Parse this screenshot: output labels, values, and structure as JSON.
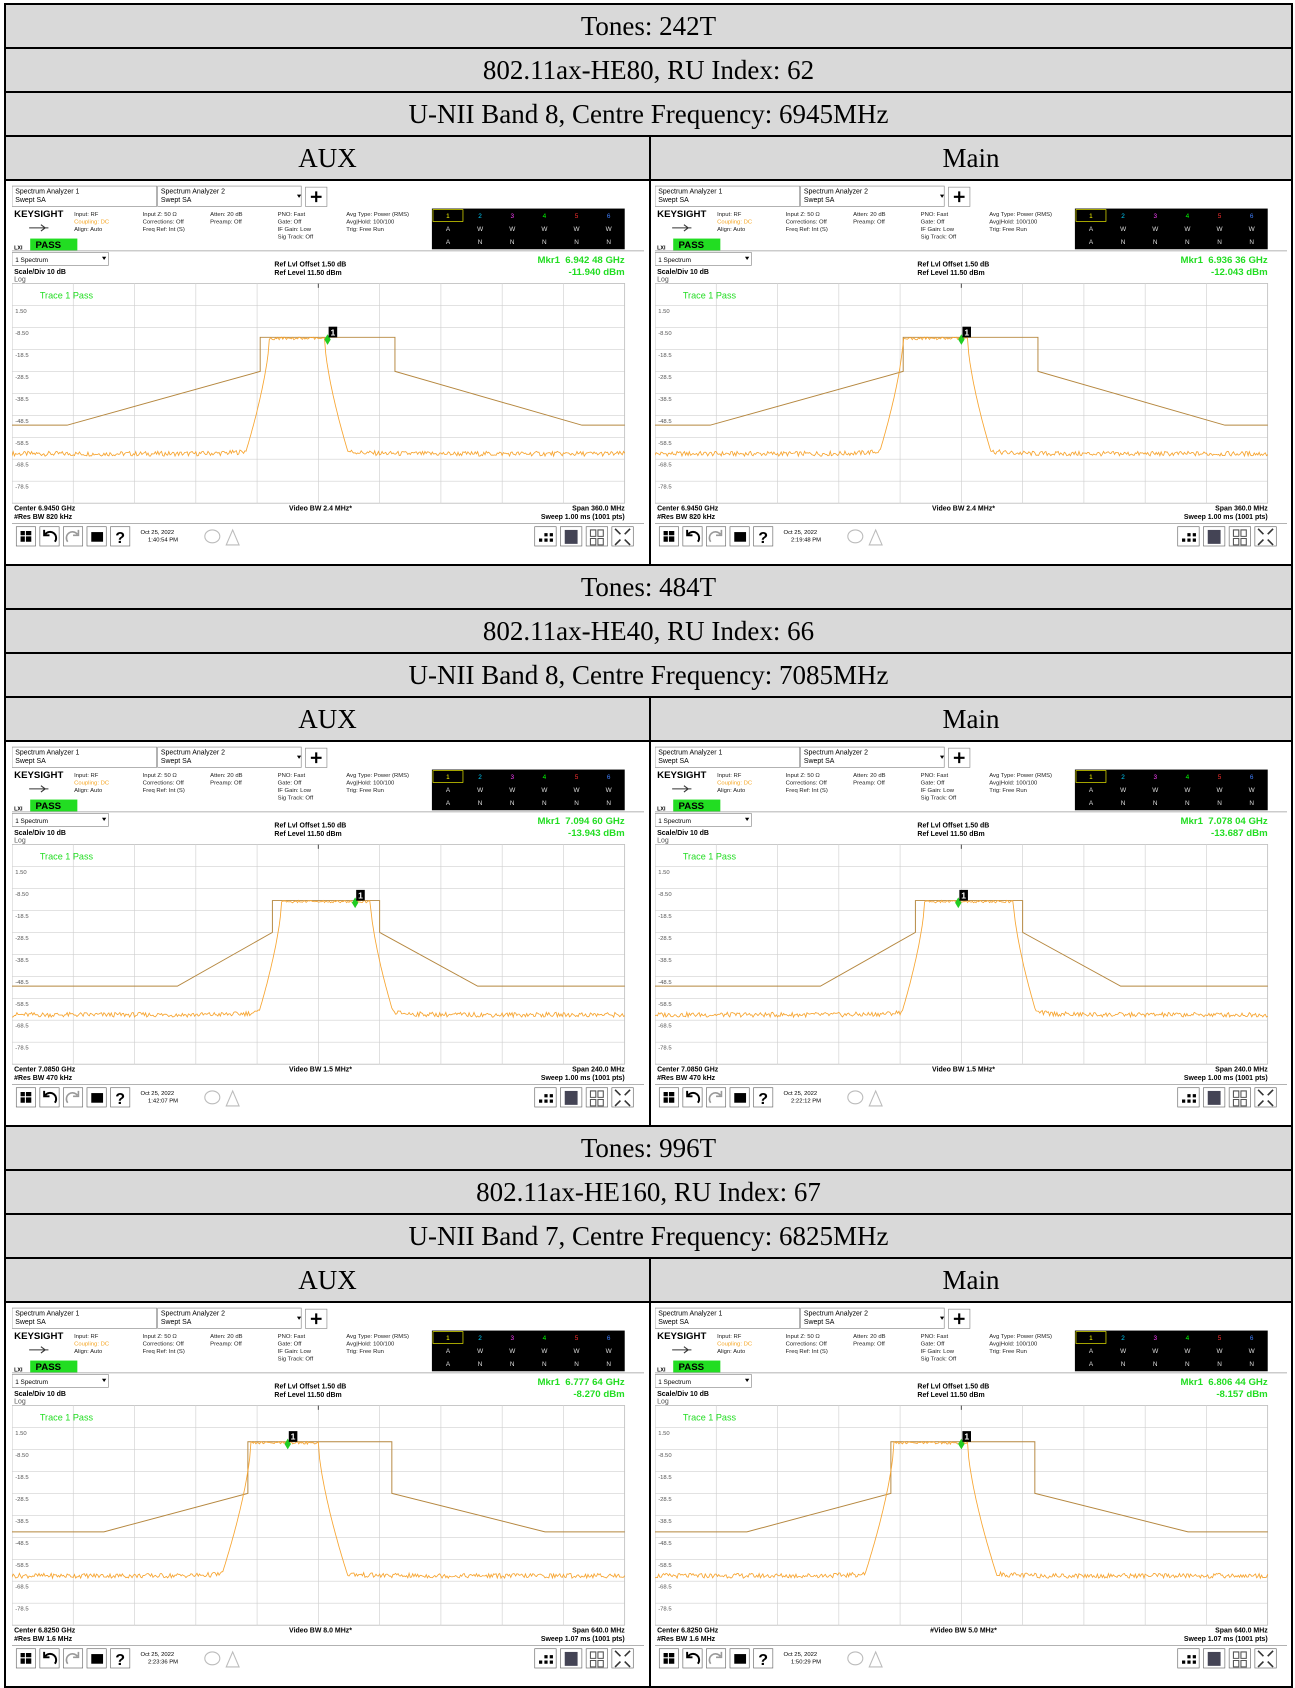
{
  "common": {
    "tab1": "Spectrum Analyzer 1",
    "tab2": "Spectrum Analyzer 2",
    "swept_sa": "Swept SA",
    "keysight": "KEYSIGHT",
    "lxi": "LXI",
    "pass": "PASS",
    "settings": [
      [
        "Input: RF",
        "Coupling: DC",
        "Align: Auto"
      ],
      [
        "Input Z: 50 Ω",
        "Corrections: Off",
        "Freq Ref: Int (S)"
      ],
      [
        "Atten: 20 dB",
        "Preamp: Off"
      ],
      [
        "PNO: Fast",
        "Gate: Off",
        "IF Gain: Low",
        "Sig Track: Off"
      ],
      [
        "Avg Type: Power (RMS)",
        "Avg|Hold: 100/100",
        "Trig: Free Run"
      ]
    ],
    "trace_table": [
      [
        "1",
        "2",
        "3",
        "4",
        "5",
        "6"
      ],
      [
        "A",
        "W",
        "W",
        "W",
        "W",
        "W"
      ],
      [
        "A",
        "N",
        "N",
        "N",
        "N",
        "N"
      ]
    ],
    "spectrum": "1 Spectrum",
    "scale_div": "Scale/Div 10 dB",
    "log": "Log",
    "ref_offset": "Ref Lvl Offset 1.50 dB",
    "ref_level": "Ref Level 11.50 dBm",
    "trace_pass": "Trace 1 Pass",
    "marker_id": "1",
    "help": "?",
    "yticks": [
      "1.50",
      "-8.50",
      "-18.5",
      "-28.5",
      "-38.5",
      "-48.5",
      "-58.5",
      "-68.5",
      "-78.5"
    ]
  },
  "sections": [
    {
      "tones": "Tones: 242T",
      "mode": "802.11ax-HE80, RU Index: 62",
      "band": "U-NII Band 8, Centre Frequency: 6945MHz",
      "panels": [
        {
          "label": "AUX",
          "marker_freq": "Mkr1  6.942 48 GHz",
          "marker_level": "-11.940 dBm",
          "center": "Center 6.9450 GHz",
          "res_bw": "#Res BW 820 kHz",
          "video_bw": "Video BW 2.4 MHz*",
          "span": "Span 360.0 MHz",
          "sweep": "Sweep 1.00 ms (1001 pts)",
          "date": "Oct 25, 2022",
          "time": "1:40:54 PM"
        },
        {
          "label": "Main",
          "marker_freq": "Mkr1  6.936 36 GHz",
          "marker_level": "-12.043 dBm",
          "center": "Center 6.9450 GHz",
          "res_bw": "#Res BW 820 kHz",
          "video_bw": "Video BW 2.4 MHz*",
          "span": "Span 360.0 MHz",
          "sweep": "Sweep 1.00 ms (1001 pts)",
          "date": "Oct 25, 2022",
          "time": "2:19:48 PM"
        }
      ]
    },
    {
      "tones": "Tones: 484T",
      "mode": "802.11ax-HE40, RU Index: 66",
      "band": "U-NII Band 8, Centre Frequency: 7085MHz",
      "panels": [
        {
          "label": "AUX",
          "marker_freq": "Mkr1  7.094 60 GHz",
          "marker_level": "-13.943 dBm",
          "center": "Center 7.0850 GHz",
          "res_bw": "#Res BW 470 kHz",
          "video_bw": "Video BW 1.5 MHz*",
          "span": "Span 240.0 MHz",
          "sweep": "Sweep 1.00 ms (1001 pts)",
          "date": "Oct 25, 2022",
          "time": "1:42:07 PM"
        },
        {
          "label": "Main",
          "marker_freq": "Mkr1  7.078 04 GHz",
          "marker_level": "-13.687 dBm",
          "center": "Center 7.0850 GHz",
          "res_bw": "#Res BW 470 kHz",
          "video_bw": "Video BW 1.5 MHz*",
          "span": "Span 240.0 MHz",
          "sweep": "Sweep 1.00 ms (1001 pts)",
          "date": "Oct 25, 2022",
          "time": "2:22:12 PM"
        }
      ]
    },
    {
      "tones": "Tones: 996T",
      "mode": "802.11ax-HE160, RU Index: 67",
      "band": "U-NII Band 7, Centre Frequency: 6825MHz",
      "panels": [
        {
          "label": "AUX",
          "marker_freq": "Mkr1  6.777 64 GHz",
          "marker_level": "-8.270 dBm",
          "center": "Center 6.8250 GHz",
          "res_bw": "#Res BW 1.6 MHz",
          "video_bw": "Video BW 8.0 MHz*",
          "span": "Span 640.0 MHz",
          "sweep": "Sweep 1.07 ms (1001 pts)",
          "date": "Oct 25, 2022",
          "time": "2:23:36 PM"
        },
        {
          "label": "Main",
          "marker_freq": "Mkr1  6.806 44 GHz",
          "marker_level": "-8.157 dBm",
          "center": "Center 6.8250 GHz",
          "res_bw": "#Res BW 1.6 MHz",
          "video_bw": "#Video BW 5.0 MHz*",
          "span": "Span 640.0 MHz",
          "sweep": "Sweep 1.07 ms (1001 pts)",
          "date": "Oct 25, 2022",
          "time": "1:50:29 PM"
        }
      ]
    }
  ]
}
